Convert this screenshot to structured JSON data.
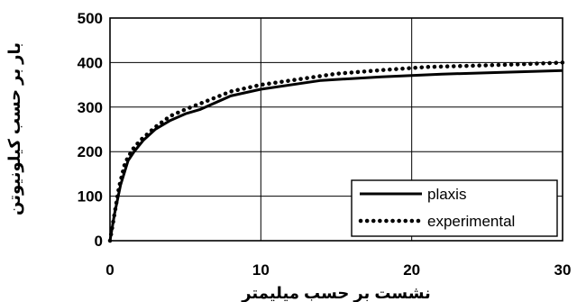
{
  "chart_data": {
    "type": "line",
    "title": "",
    "xlabel": "نشست بر حسب میلیمتر",
    "ylabel": "بار بر حسب کیلونیوتن",
    "xlim": [
      0,
      30
    ],
    "ylim": [
      0,
      500
    ],
    "xticks": [
      0,
      10,
      20,
      30
    ],
    "yticks": [
      0,
      100,
      200,
      300,
      400,
      500
    ],
    "xtick_labels": [
      "0",
      "10",
      "20",
      "30"
    ],
    "ytick_labels": [
      "0",
      "100",
      "200",
      "300",
      "400",
      "500"
    ],
    "grid": true,
    "legend_position": "bottom-right",
    "series": [
      {
        "name": "plaxis",
        "style": "solid",
        "color": "#000000",
        "x": [
          0,
          0.3,
          0.7,
          1.2,
          1.6,
          2.2,
          3,
          4,
          5,
          6,
          8,
          10,
          14,
          18,
          22,
          26,
          30
        ],
        "y": [
          0,
          60,
          125,
          180,
          200,
          225,
          250,
          270,
          285,
          295,
          325,
          340,
          360,
          368,
          374,
          378,
          382
        ]
      },
      {
        "name": "experimental",
        "style": "dotted",
        "color": "#000000",
        "x": [
          0,
          0.3,
          0.6,
          1.0,
          1.5,
          2,
          3,
          4,
          5,
          6,
          8,
          10,
          12,
          15,
          18,
          21,
          24,
          27,
          30
        ],
        "y": [
          0,
          60,
          120,
          175,
          205,
          225,
          255,
          280,
          295,
          308,
          335,
          350,
          360,
          375,
          383,
          390,
          393,
          396,
          400
        ]
      }
    ]
  }
}
